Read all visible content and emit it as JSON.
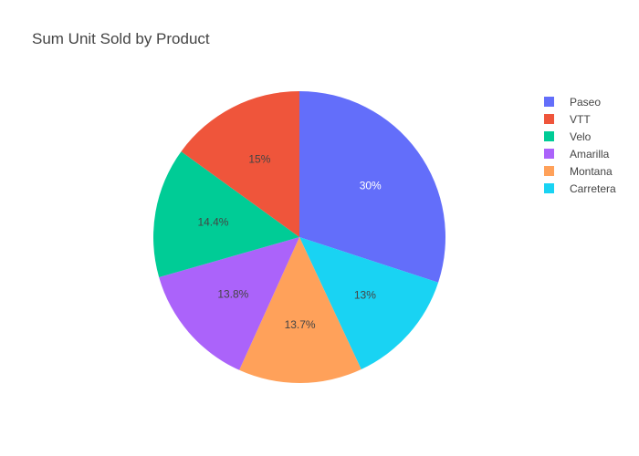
{
  "chart_data": {
    "type": "pie",
    "title": "Sum Unit Sold by Product",
    "legend_position": "right",
    "slices": [
      {
        "label": "Paseo",
        "value": 30.0,
        "text": "30%",
        "color": "#636efa",
        "text_color": "#ffffff"
      },
      {
        "label": "Carretera",
        "value": 13.0,
        "text": "13%",
        "color": "#19d3f3",
        "text_color": "#444444"
      },
      {
        "label": "Montana",
        "value": 13.7,
        "text": "13.7%",
        "color": "#ffa15a",
        "text_color": "#444444"
      },
      {
        "label": "Amarilla",
        "value": 13.8,
        "text": "13.8%",
        "color": "#ab63fa",
        "text_color": "#444444"
      },
      {
        "label": "Velo",
        "value": 14.4,
        "text": "14.4%",
        "color": "#00cc96",
        "text_color": "#444444"
      },
      {
        "label": "VTT",
        "value": 15.0,
        "text": "15%",
        "color": "#ef553b",
        "text_color": "#444444"
      }
    ],
    "legend_order": [
      "Paseo",
      "VTT",
      "Velo",
      "Amarilla",
      "Montana",
      "Carretera"
    ]
  }
}
